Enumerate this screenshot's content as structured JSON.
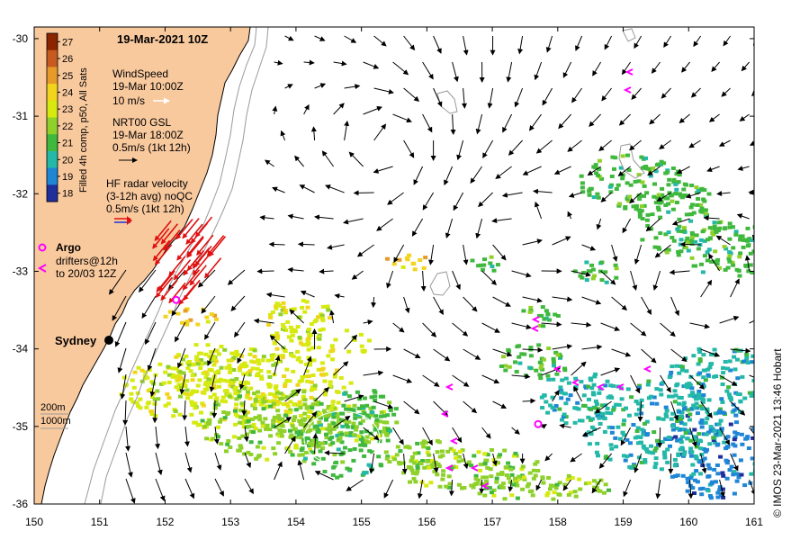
{
  "title": "19-Mar-2021 10Z",
  "axes": {
    "x_ticks": [
      "150",
      "151",
      "152",
      "153",
      "154",
      "155",
      "156",
      "157",
      "158",
      "159",
      "160",
      "161"
    ],
    "y_ticks": [
      "-30",
      "-31",
      "-32",
      "-33",
      "-34",
      "-35",
      "-36"
    ],
    "lon_range": [
      150,
      161
    ],
    "lat_range": [
      -36,
      -29.85
    ]
  },
  "colorbar": {
    "label": "Filled 4h comp, p50, All Sats",
    "ticks": [
      "27",
      "26",
      "25",
      "24",
      "23",
      "22",
      "21",
      "20",
      "19",
      "18"
    ],
    "colors": [
      "#8b2500",
      "#c75a1f",
      "#e59a2a",
      "#f2d41d",
      "#d6ea10",
      "#8fd12a",
      "#3fb83d",
      "#23b8a8",
      "#1f86d6",
      "#1e2f9c"
    ]
  },
  "legend": {
    "wind_title": "WindSpeed",
    "wind_time": "19-Mar 10:00Z",
    "wind_scale": "10 m/s",
    "current_title": "NRT00 GSL",
    "current_time": "19-Mar 18:00Z",
    "current_scale": "0.5m/s (1kt 12h)",
    "radar_title": "HF radar velocity",
    "radar_sub": "(3-12h avg) noQC",
    "radar_scale": "0.5m/s (1kt 12h)",
    "argo_label": "Argo",
    "drifter_label1": "drifters@12h",
    "drifter_label2": "to 20/03 12Z"
  },
  "depth_legend": {
    "shallow": "200m",
    "deep": "1000m"
  },
  "places": [
    {
      "name": "Sydney",
      "lon": 151.21,
      "lat": -33.87
    }
  ],
  "credit": "© IMOS 23-Mar-2021 13:46 Hobart",
  "colors": {
    "land": "#f9c99e",
    "coast": "#000000",
    "isobath": "#9a9a9a",
    "current_arrow": "#000000",
    "radar_arrow": "#e01010",
    "argo": "#ff00ff",
    "drifter": "#ff00ff",
    "frame": "#000000"
  },
  "argo_floats": [
    {
      "lon": 152.17,
      "lat": -33.37
    },
    {
      "lon": 157.7,
      "lat": -34.97
    }
  ]
}
